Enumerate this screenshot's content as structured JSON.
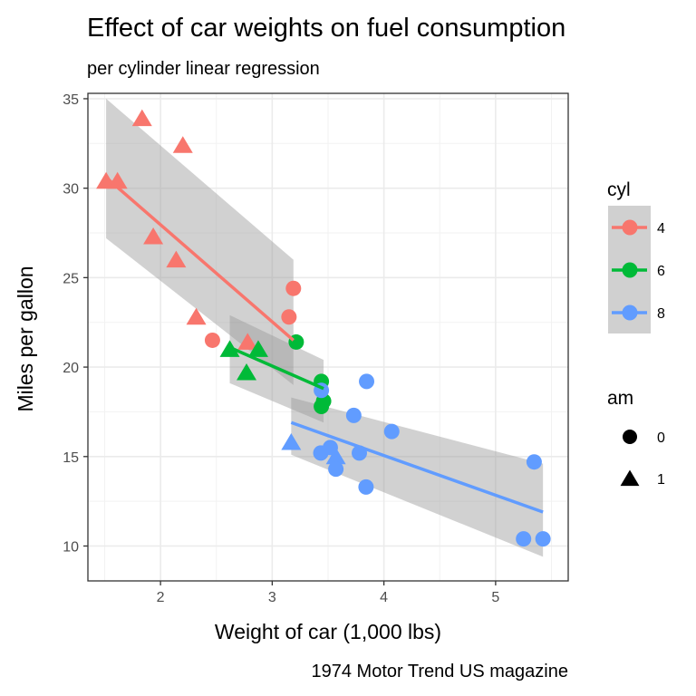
{
  "chart_data": {
    "type": "scatter",
    "title": "Effect of car weights on fuel consumption",
    "subtitle": "per cylinder linear regression",
    "xlabel": "Weight of car (1,000 lbs)",
    "ylabel": "Miles per gallon",
    "caption": "1974 Motor Trend US magazine",
    "xlim": [
      1.35,
      5.65
    ],
    "ylim": [
      8.05,
      35.3
    ],
    "x_ticks": [
      2,
      3,
      4,
      5
    ],
    "y_ticks": [
      10,
      15,
      20,
      25,
      30,
      35
    ],
    "grid": true,
    "colors": {
      "4": "#F8766D",
      "6": "#00BA38",
      "8": "#619CFF"
    },
    "legend": {
      "position": "right",
      "cyl": {
        "title": "cyl",
        "labels": [
          "4",
          "6",
          "8"
        ]
      },
      "am": {
        "title": "am",
        "labels": [
          "0",
          "1"
        ]
      }
    },
    "points": [
      {
        "x": 1.513,
        "y": 30.4,
        "cyl": "4",
        "am": "1"
      },
      {
        "x": 1.615,
        "y": 30.4,
        "cyl": "4",
        "am": "1"
      },
      {
        "x": 1.835,
        "y": 33.9,
        "cyl": "4",
        "am": "1"
      },
      {
        "x": 1.935,
        "y": 27.3,
        "cyl": "4",
        "am": "1"
      },
      {
        "x": 2.14,
        "y": 26.0,
        "cyl": "4",
        "am": "1"
      },
      {
        "x": 2.2,
        "y": 32.4,
        "cyl": "4",
        "am": "1"
      },
      {
        "x": 2.32,
        "y": 22.8,
        "cyl": "4",
        "am": "1"
      },
      {
        "x": 2.465,
        "y": 21.5,
        "cyl": "4",
        "am": "0"
      },
      {
        "x": 2.78,
        "y": 21.4,
        "cyl": "4",
        "am": "1"
      },
      {
        "x": 3.15,
        "y": 22.8,
        "cyl": "4",
        "am": "0"
      },
      {
        "x": 3.19,
        "y": 24.4,
        "cyl": "4",
        "am": "0"
      },
      {
        "x": 2.62,
        "y": 21.0,
        "cyl": "6",
        "am": "1"
      },
      {
        "x": 2.77,
        "y": 19.7,
        "cyl": "6",
        "am": "1"
      },
      {
        "x": 2.875,
        "y": 21.0,
        "cyl": "6",
        "am": "1"
      },
      {
        "x": 3.215,
        "y": 21.4,
        "cyl": "6",
        "am": "0"
      },
      {
        "x": 3.44,
        "y": 19.2,
        "cyl": "6",
        "am": "0"
      },
      {
        "x": 3.44,
        "y": 17.8,
        "cyl": "6",
        "am": "0"
      },
      {
        "x": 3.46,
        "y": 18.1,
        "cyl": "6",
        "am": "0"
      },
      {
        "x": 3.17,
        "y": 15.8,
        "cyl": "8",
        "am": "1"
      },
      {
        "x": 3.44,
        "y": 18.7,
        "cyl": "8",
        "am": "0"
      },
      {
        "x": 3.435,
        "y": 15.2,
        "cyl": "8",
        "am": "0"
      },
      {
        "x": 3.52,
        "y": 15.5,
        "cyl": "8",
        "am": "0"
      },
      {
        "x": 3.57,
        "y": 15.0,
        "cyl": "8",
        "am": "1"
      },
      {
        "x": 3.57,
        "y": 14.3,
        "cyl": "8",
        "am": "0"
      },
      {
        "x": 3.73,
        "y": 17.3,
        "cyl": "8",
        "am": "0"
      },
      {
        "x": 3.78,
        "y": 15.2,
        "cyl": "8",
        "am": "0"
      },
      {
        "x": 3.84,
        "y": 13.3,
        "cyl": "8",
        "am": "0"
      },
      {
        "x": 3.845,
        "y": 19.2,
        "cyl": "8",
        "am": "0"
      },
      {
        "x": 4.07,
        "y": 16.4,
        "cyl": "8",
        "am": "0"
      },
      {
        "x": 5.25,
        "y": 10.4,
        "cyl": "8",
        "am": "0"
      },
      {
        "x": 5.345,
        "y": 14.7,
        "cyl": "8",
        "am": "0"
      },
      {
        "x": 5.424,
        "y": 10.4,
        "cyl": "8",
        "am": "0"
      }
    ],
    "regressions": [
      {
        "cyl": "4",
        "x": [
          1.513,
          3.19
        ],
        "y": [
          30.6,
          21.5
        ],
        "lower": [
          27.2,
          19.0
        ],
        "upper": [
          35.0,
          26.0
        ]
      },
      {
        "cyl": "6",
        "x": [
          2.62,
          3.46
        ],
        "y": [
          21.1,
          18.8
        ],
        "lower": [
          19.1,
          16.9
        ],
        "upper": [
          22.9,
          20.4
        ]
      },
      {
        "cyl": "8",
        "x": [
          3.17,
          5.424
        ],
        "y": [
          16.9,
          11.9
        ],
        "lower": [
          15.1,
          9.4
        ],
        "upper": [
          18.3,
          14.6
        ]
      }
    ]
  }
}
